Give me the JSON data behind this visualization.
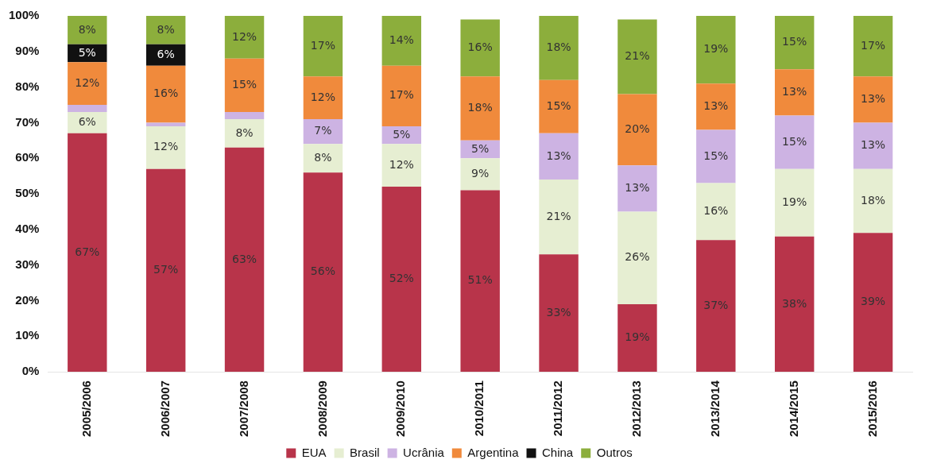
{
  "chart_data": {
    "type": "bar",
    "stacked": true,
    "categories": [
      "2005/2006",
      "2006/2007",
      "2007/2008",
      "2008/2009",
      "2009/2010",
      "2010/2011",
      "2011/2012",
      "2012/2013",
      "2013/2014",
      "2014/2015",
      "2015/2016"
    ],
    "series": [
      {
        "name": "EUA",
        "color": "#b8344a",
        "values": [
          67,
          57,
          63,
          56,
          52,
          51,
          33,
          19,
          37,
          38,
          39
        ],
        "value_labels": [
          "67%",
          "57%",
          "63%",
          "56%",
          "52%",
          "51%",
          "33%",
          "19%",
          "37%",
          "38%",
          "39%"
        ]
      },
      {
        "name": "Brasil",
        "color": "#e6eed2",
        "values": [
          6,
          12,
          8,
          8,
          12,
          9,
          21,
          26,
          16,
          19,
          18
        ],
        "value_labels": [
          "6%",
          "12%",
          "8%",
          "8%",
          "12%",
          "9%",
          "21%",
          "26%",
          "16%",
          "19%",
          "18%"
        ]
      },
      {
        "name": "Ucrânia",
        "color": "#cdb3e3",
        "values": [
          2,
          1,
          2,
          7,
          5,
          5,
          13,
          13,
          15,
          15,
          13
        ],
        "value_labels": [
          null,
          null,
          null,
          "7%",
          "5%",
          "5%",
          "13%",
          "13%",
          "15%",
          "15%",
          "13%"
        ]
      },
      {
        "name": "Argentina",
        "color": "#f08a3c",
        "values": [
          12,
          16,
          15,
          12,
          17,
          18,
          15,
          20,
          13,
          13,
          13
        ],
        "value_labels": [
          "12%",
          "16%",
          "15%",
          "12%",
          "17%",
          "18%",
          "15%",
          "20%",
          "13%",
          "13%",
          "13%"
        ]
      },
      {
        "name": "China",
        "color": "#111111",
        "values": [
          5,
          6,
          null,
          null,
          null,
          null,
          null,
          null,
          null,
          null,
          null
        ],
        "value_labels": [
          "5%",
          "6%",
          null,
          null,
          null,
          null,
          null,
          null,
          null,
          null,
          null
        ]
      },
      {
        "name": "Outros",
        "color": "#8cae3c",
        "values": [
          8,
          8,
          12,
          17,
          14,
          16,
          18,
          21,
          19,
          15,
          17
        ],
        "value_labels": [
          "8%",
          "8%",
          "12%",
          "17%",
          "14%",
          "16%",
          "18%",
          "21%",
          "19%",
          "15%",
          "17%"
        ]
      }
    ],
    "ylim": [
      0,
      100
    ],
    "yticks": [
      {
        "value": 0,
        "label": "0%"
      },
      {
        "value": 10,
        "label": "10%"
      },
      {
        "value": 20,
        "label": "20%"
      },
      {
        "value": 30,
        "label": "30%"
      },
      {
        "value": 40,
        "label": "40%"
      },
      {
        "value": 50,
        "label": "50%"
      },
      {
        "value": 60,
        "label": "60%"
      },
      {
        "value": 70,
        "label": "70%"
      },
      {
        "value": 80,
        "label": "80%"
      },
      {
        "value": 90,
        "label": "90%"
      },
      {
        "value": 100,
        "label": "100%"
      }
    ],
    "grid": false,
    "legend": "bottom"
  }
}
